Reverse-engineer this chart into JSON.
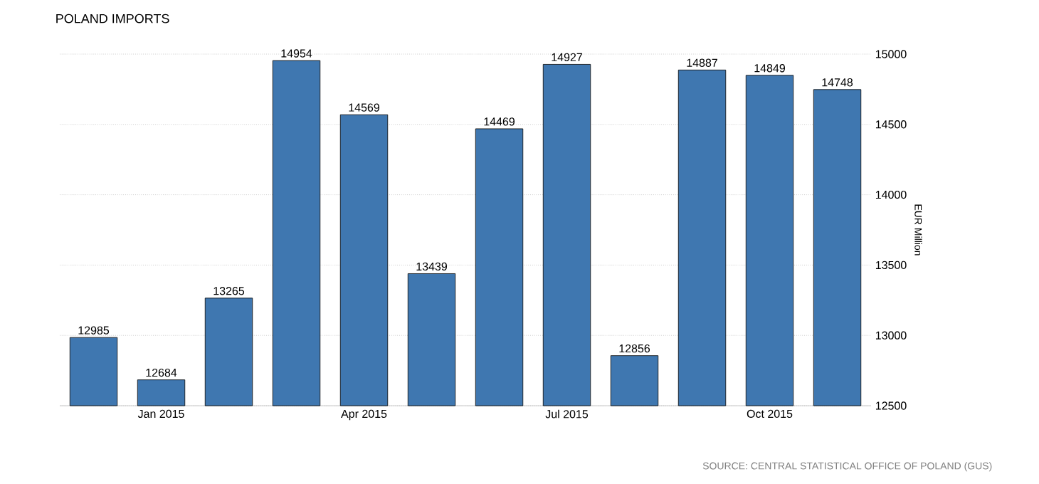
{
  "chart_data": {
    "type": "bar",
    "title": "POLAND IMPORTS",
    "ylabel": "EUR Million",
    "categories": [
      null,
      "Jan 2015",
      null,
      null,
      "Apr 2015",
      null,
      null,
      "Jul 2015",
      null,
      null,
      "Oct 2015",
      null
    ],
    "values": [
      12985,
      12684,
      13265,
      14954,
      14569,
      13439,
      14469,
      14927,
      12856,
      14887,
      14849,
      14748
    ],
    "color": "#3f77b0",
    "ylim": [
      12500,
      15000
    ],
    "yticks": [
      12500,
      13000,
      13500,
      14000,
      14500,
      15000
    ],
    "grid": "y",
    "data_labels": true,
    "annotations": [
      "SOURCE: CENTRAL STATISTICAL OFFICE OF POLAND (GUS)"
    ]
  }
}
